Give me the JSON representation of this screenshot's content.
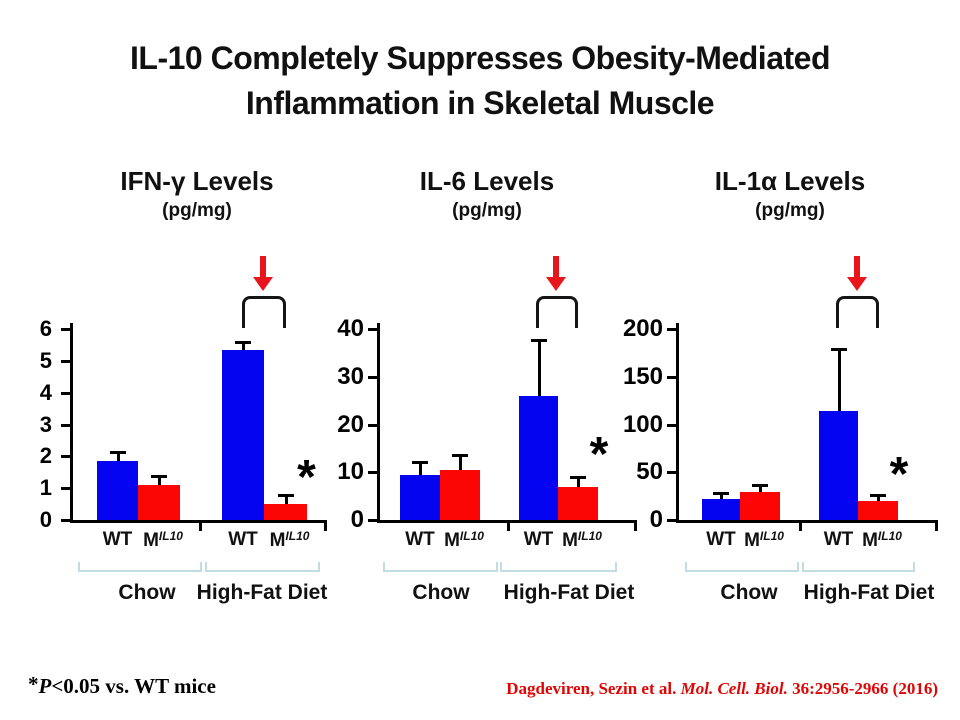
{
  "slide": {
    "title_line1": "IL-10 Completely Suppresses Obesity-Mediated",
    "title_line2": "Inflammation in Skeletal Muscle"
  },
  "colors": {
    "wt_bar": "#0404f0",
    "mil10_bar": "#fb0505",
    "arrow": "#e8151c",
    "comparison_bracket": "#151515",
    "group_bracket": "#c2dde2",
    "citation_red": "#e00404",
    "axis": "#000000"
  },
  "sig_marker": "*",
  "footnote": {
    "star": "*",
    "p_italic": "P",
    "text": "<0.05 vs. WT mice"
  },
  "citation": {
    "authors": "Dagdeviren, Sezin et al. ",
    "journal_italic": "Mol. Cell. Biol. ",
    "volume": "36:2956-2966 (2016)"
  },
  "chart_data": [
    {
      "type": "bar",
      "title": "IFN-γ Levels",
      "units": "(pg/mg)",
      "ylim": [
        0,
        6
      ],
      "yticks": [
        0,
        1,
        2,
        3,
        4,
        5,
        6
      ],
      "annotation": "red down-arrow and bracket over High-Fat Diet pair",
      "groups": [
        {
          "label": "Chow",
          "highlighted": false,
          "bars": [
            {
              "label": "WT",
              "sup": "",
              "series": "WT",
              "value": 1.85,
              "error_up": 0.25,
              "significant": false
            },
            {
              "label": "M",
              "sup": "IL10",
              "series": "MIL10",
              "value": 1.1,
              "error_up": 0.25,
              "significant": false
            }
          ]
        },
        {
          "label": "High-Fat Diet",
          "highlighted": true,
          "bars": [
            {
              "label": "WT",
              "sup": "",
              "series": "WT",
              "value": 5.35,
              "error_up": 0.2,
              "significant": false
            },
            {
              "label": "M",
              "sup": "IL10",
              "series": "MIL10",
              "value": 0.5,
              "error_up": 0.25,
              "significant": true
            }
          ]
        }
      ]
    },
    {
      "type": "bar",
      "title": "IL-6 Levels",
      "units": "(pg/mg)",
      "ylim": [
        0,
        40
      ],
      "yticks": [
        0,
        10,
        20,
        30,
        40
      ],
      "annotation": "red down-arrow and bracket over High-Fat Diet pair",
      "groups": [
        {
          "label": "Chow",
          "highlighted": false,
          "bars": [
            {
              "label": "WT",
              "sup": "",
              "series": "WT",
              "value": 9.5,
              "error_up": 2.5,
              "significant": false
            },
            {
              "label": "M",
              "sup": "IL10",
              "series": "MIL10",
              "value": 10.5,
              "error_up": 3,
              "significant": false
            }
          ]
        },
        {
          "label": "High-Fat Diet",
          "highlighted": true,
          "bars": [
            {
              "label": "WT",
              "sup": "",
              "series": "WT",
              "value": 26,
              "error_up": 11.5,
              "significant": false
            },
            {
              "label": "M",
              "sup": "IL10",
              "series": "MIL10",
              "value": 7,
              "error_up": 1.8,
              "significant": true
            }
          ]
        }
      ]
    },
    {
      "type": "bar",
      "title": "IL-1α Levels",
      "units": "(pg/mg)",
      "ylim": [
        0,
        200
      ],
      "yticks": [
        0,
        50,
        100,
        150,
        200
      ],
      "annotation": "red down-arrow and bracket over High-Fat Diet pair",
      "groups": [
        {
          "label": "Chow",
          "highlighted": false,
          "bars": [
            {
              "label": "WT",
              "sup": "",
              "series": "WT",
              "value": 22,
              "error_up": 5,
              "significant": false
            },
            {
              "label": "M",
              "sup": "IL10",
              "series": "MIL10",
              "value": 29,
              "error_up": 7,
              "significant": false
            }
          ]
        },
        {
          "label": "High-Fat Diet",
          "highlighted": true,
          "bars": [
            {
              "label": "WT",
              "sup": "",
              "series": "WT",
              "value": 114,
              "error_up": 64,
              "significant": false
            },
            {
              "label": "M",
              "sup": "IL10",
              "series": "MIL10",
              "value": 20,
              "error_up": 5,
              "significant": true
            }
          ]
        }
      ]
    }
  ]
}
